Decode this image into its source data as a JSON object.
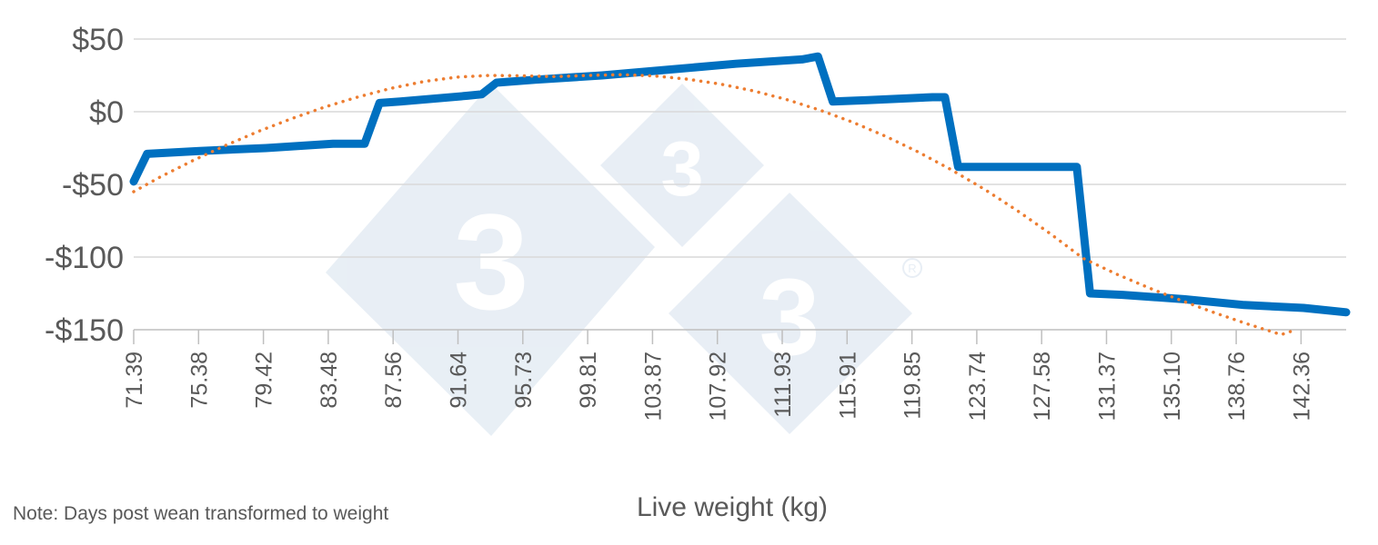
{
  "chart_data": {
    "type": "line",
    "xlabel": "Live weight (kg)",
    "ylabel": "",
    "ylim": [
      -150,
      50
    ],
    "yticks": [
      50,
      0,
      -50,
      -100,
      -150
    ],
    "ytick_labels": [
      "$50",
      "$0",
      "-$50",
      "-$100",
      "-$150"
    ],
    "x_tick_labels": [
      "71.39",
      "75.38",
      "79.42",
      "83.48",
      "87.56",
      "91.64",
      "95.73",
      "99.81",
      "103.87",
      "107.92",
      "111.93",
      "115.91",
      "119.85",
      "123.74",
      "127.58",
      "131.37",
      "135.10",
      "138.76",
      "142.36"
    ],
    "x_range": [
      71.39,
      144.94
    ],
    "grid": true,
    "legend": "none",
    "series": [
      {
        "kind": "solid",
        "color": "#0070C0",
        "x": [
          71.39,
          72.2,
          75.38,
          79.42,
          83.48,
          85.4,
          86.3,
          87.56,
          91.64,
          92.5,
          93.4,
          95.73,
          99.81,
          103.87,
          107.92,
          111.93,
          112.9,
          113.8,
          115.91,
          119.85,
          120.6,
          121.4,
          123.74,
          127.58,
          128.6,
          129.4,
          131.37,
          135.1,
          138.76,
          142.36,
          144.94
        ],
        "values": [
          -48,
          -29,
          -27,
          -25,
          -22,
          -22,
          6,
          7,
          11,
          12,
          20,
          22,
          25,
          29,
          33,
          36,
          38,
          7,
          8,
          10,
          10,
          -38,
          -38,
          -38,
          -38,
          -125,
          -126,
          -129,
          -133,
          -135,
          -138
        ]
      },
      {
        "kind": "dotted-trend",
        "color": "#ED7D31",
        "x": [
          71.39,
          73,
          75,
          77,
          79,
          81,
          83,
          85,
          87,
          89,
          91,
          93,
          95,
          97,
          99,
          101,
          103,
          105,
          107,
          109,
          111,
          113,
          115,
          117,
          119,
          121,
          123,
          125,
          127,
          129,
          131,
          133,
          135,
          137,
          139,
          141,
          141.9
        ],
        "values": [
          -55,
          -44.9,
          -33.5,
          -23,
          -13.3,
          -4.6,
          3.3,
          10.2,
          16.1,
          20.8,
          23.8,
          25,
          24.7,
          24.2,
          25,
          25.5,
          24.6,
          22.4,
          19,
          14.3,
          8.4,
          1.2,
          -7.2,
          -16.9,
          -27.8,
          -40,
          -53.4,
          -68.1,
          -84,
          -101,
          -111.7,
          -121.3,
          -130.2,
          -138.5,
          -146.2,
          -153.4,
          -150
        ]
      }
    ]
  },
  "note": "Note: Days post wean transformed to weight"
}
